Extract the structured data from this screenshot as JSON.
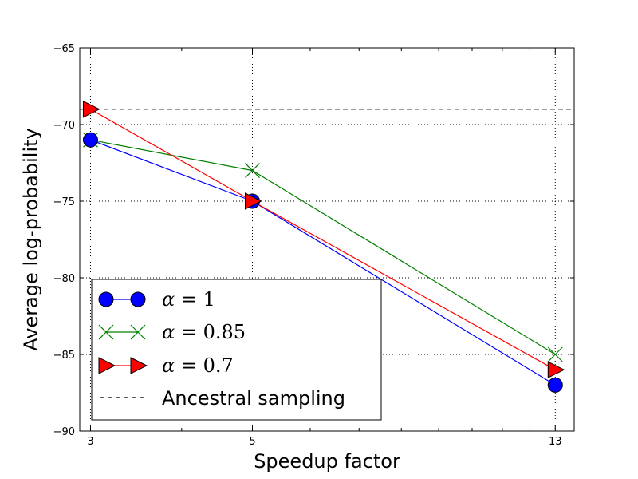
{
  "chart_data": {
    "type": "line",
    "title": "",
    "xlabel": "Speedup factor",
    "ylabel": "Average log-probability",
    "xscale": "log",
    "xlim": [
      2.9,
      13.8
    ],
    "ylim": [
      -90,
      -65
    ],
    "x_ticks": [
      3,
      5,
      13
    ],
    "x_tick_labels": [
      "3",
      "5",
      "13"
    ],
    "y_ticks": [
      -90,
      -85,
      -80,
      -75,
      -70,
      -65
    ],
    "y_tick_labels": [
      "−90",
      "−85",
      "−80",
      "−75",
      "−70",
      "−65"
    ],
    "grid": true,
    "legend_position": "lower-left",
    "series": [
      {
        "name": "α = 1",
        "label_symbol": "α",
        "label_value": "1",
        "x": [
          3,
          5,
          13
        ],
        "values": [
          -71,
          -75,
          -87
        ],
        "color": "#0000ff",
        "marker": "circle"
      },
      {
        "name": "α = 0.85",
        "label_symbol": "α",
        "label_value": "0.85",
        "x": [
          3,
          5,
          13
        ],
        "values": [
          -71,
          -73,
          -85
        ],
        "color": "#008000",
        "marker": "x"
      },
      {
        "name": "α = 0.7",
        "label_symbol": "α",
        "label_value": "0.7",
        "x": [
          3,
          5,
          13
        ],
        "values": [
          -69,
          -75,
          -86
        ],
        "color": "#ff0000",
        "marker": "triangle-right"
      }
    ],
    "reference_line": {
      "name": "Ancestral sampling",
      "y": -69,
      "color": "#000000",
      "style": "dashed"
    }
  }
}
